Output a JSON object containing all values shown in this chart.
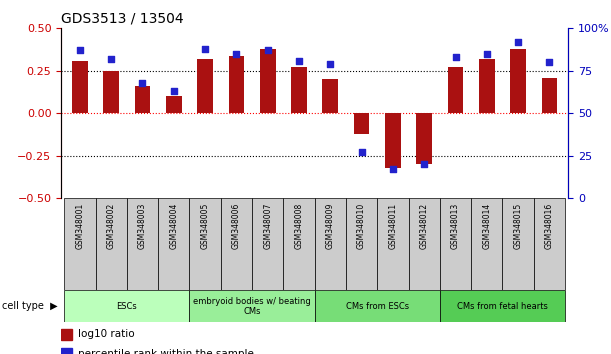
{
  "title": "GDS3513 / 13504",
  "samples": [
    "GSM348001",
    "GSM348002",
    "GSM348003",
    "GSM348004",
    "GSM348005",
    "GSM348006",
    "GSM348007",
    "GSM348008",
    "GSM348009",
    "GSM348010",
    "GSM348011",
    "GSM348012",
    "GSM348013",
    "GSM348014",
    "GSM348015",
    "GSM348016"
  ],
  "log10_ratio": [
    0.31,
    0.25,
    0.16,
    0.1,
    0.32,
    0.34,
    0.38,
    0.27,
    0.2,
    -0.12,
    -0.32,
    -0.3,
    0.27,
    0.32,
    0.38,
    0.21
  ],
  "percentile_rank": [
    87,
    82,
    68,
    63,
    88,
    85,
    87,
    81,
    79,
    27,
    17,
    20,
    83,
    85,
    92,
    80
  ],
  "bar_color": "#AA1111",
  "square_color": "#2222CC",
  "cell_types": [
    {
      "label": "ESCs",
      "start": 0,
      "end": 3,
      "color": "#BBFFBB"
    },
    {
      "label": "embryoid bodies w/ beating\nCMs",
      "start": 4,
      "end": 7,
      "color": "#99EE99"
    },
    {
      "label": "CMs from ESCs",
      "start": 8,
      "end": 11,
      "color": "#77DD77"
    },
    {
      "label": "CMs from fetal hearts",
      "start": 12,
      "end": 15,
      "color": "#55CC55"
    }
  ],
  "ylim_left": [
    -0.5,
    0.5
  ],
  "ylim_right": [
    0,
    100
  ],
  "yticks_left": [
    -0.5,
    -0.25,
    0,
    0.25,
    0.5
  ],
  "yticks_right": [
    0,
    25,
    50,
    75,
    100
  ],
  "hlines_dotted": [
    -0.25,
    0.25
  ],
  "hline_red": 0,
  "background_color": "#FFFFFF",
  "left_axis_color": "#CC0000",
  "right_axis_color": "#0000BB",
  "bar_width": 0.5,
  "xlim": [
    -0.6,
    15.6
  ],
  "sample_label_fontsize": 6,
  "title_fontsize": 10
}
